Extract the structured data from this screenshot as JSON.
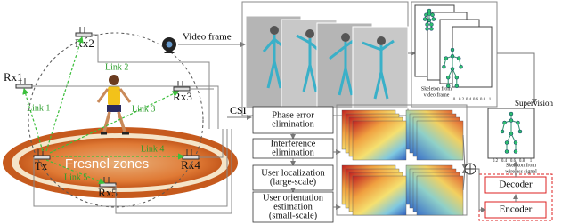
{
  "nodes": {
    "rx1": "Rx1",
    "rx2": "Rx2",
    "rx3": "Rx3",
    "rx4": "Rx4",
    "rx5": "Rx5",
    "tx": "Tx"
  },
  "links": [
    "Link 1",
    "Link 2",
    "Link 3",
    "Link 4",
    "Link 5"
  ],
  "fresnel": "Fresnel zones",
  "video_frame": "Video frame",
  "csi": "CSI",
  "pipeline": [
    [
      "Phase error",
      "elimination"
    ],
    [
      "Interference",
      "elimination"
    ],
    [
      "User localization",
      "(large-scale)"
    ],
    [
      "User orientation",
      "estimation",
      "(small-scale)"
    ]
  ],
  "skeleton_video": [
    "Skeleton from",
    "video frame"
  ],
  "supervision": "Supervision",
  "skeleton_wireless": [
    "Skeleton from",
    "wireless signal"
  ],
  "video_xticks": [
    "0",
    "0.2",
    "0.4",
    "0.6",
    "0.8",
    "1"
  ],
  "wireless_xticks": [
    "0.2",
    "0.4",
    "0.6",
    "0.8",
    "1"
  ],
  "decoder": "Decoder",
  "encoder": "Encoder"
}
